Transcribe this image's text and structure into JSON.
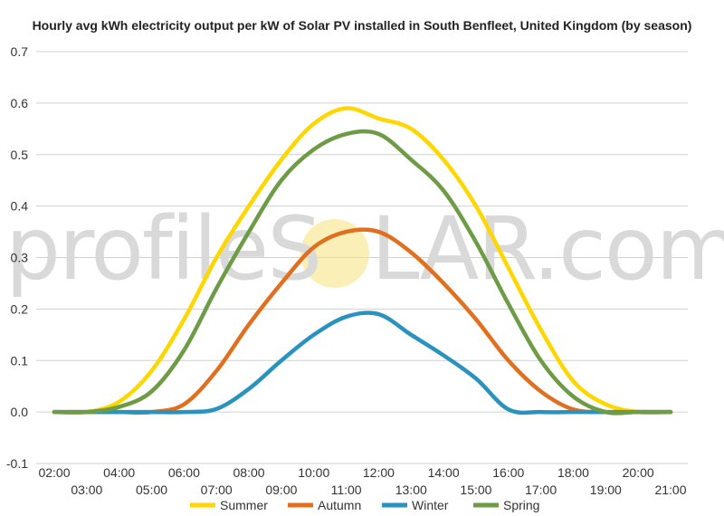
{
  "watermark": {
    "text_a": "profileS",
    "text_b": "LAR.com",
    "sun_color": "#f6e27a"
  },
  "chart_data": {
    "type": "line",
    "title": "Hourly avg kWh electricity output per kW of Solar PV installed in South Benfleet, United Kingdom (by season)",
    "xlabel": "",
    "ylabel": "",
    "ylim": [
      -0.1,
      0.7
    ],
    "yticks": [
      "-0.1",
      "0.0",
      "0.1",
      "0.2",
      "0.3",
      "0.4",
      "0.5",
      "0.6",
      "0.7"
    ],
    "yticks_values": [
      -0.1,
      0.0,
      0.1,
      0.2,
      0.3,
      0.4,
      0.5,
      0.6,
      0.7
    ],
    "x": [
      "02:00",
      "03:00",
      "04:00",
      "05:00",
      "06:00",
      "07:00",
      "08:00",
      "09:00",
      "10:00",
      "11:00",
      "12:00",
      "13:00",
      "14:00",
      "15:00",
      "16:00",
      "17:00",
      "18:00",
      "19:00",
      "20:00",
      "21:00"
    ],
    "grid": true,
    "legend_position": "bottom",
    "series": [
      {
        "name": "Summer",
        "color": "#ffd700",
        "values": [
          0.0,
          0.0,
          0.02,
          0.08,
          0.18,
          0.3,
          0.4,
          0.49,
          0.56,
          0.59,
          0.57,
          0.55,
          0.49,
          0.4,
          0.28,
          0.16,
          0.06,
          0.015,
          0.0,
          0.0
        ]
      },
      {
        "name": "Autumn",
        "color": "#e07020",
        "values": [
          0.0,
          0.0,
          0.0,
          0.0,
          0.015,
          0.08,
          0.17,
          0.25,
          0.32,
          0.35,
          0.35,
          0.31,
          0.25,
          0.18,
          0.1,
          0.04,
          0.005,
          0.0,
          0.0,
          0.0
        ]
      },
      {
        "name": "Winter",
        "color": "#2a92bf",
        "values": [
          0.0,
          0.0,
          0.0,
          0.0,
          0.0,
          0.006,
          0.045,
          0.1,
          0.15,
          0.185,
          0.19,
          0.15,
          0.11,
          0.065,
          0.005,
          0.0,
          0.0,
          0.0,
          0.0,
          0.0
        ]
      },
      {
        "name": "Spring",
        "color": "#6e9b45",
        "values": [
          0.0,
          0.0,
          0.01,
          0.04,
          0.12,
          0.24,
          0.35,
          0.45,
          0.51,
          0.54,
          0.54,
          0.49,
          0.43,
          0.33,
          0.21,
          0.1,
          0.03,
          0.0,
          0.0,
          0.0
        ]
      }
    ]
  }
}
